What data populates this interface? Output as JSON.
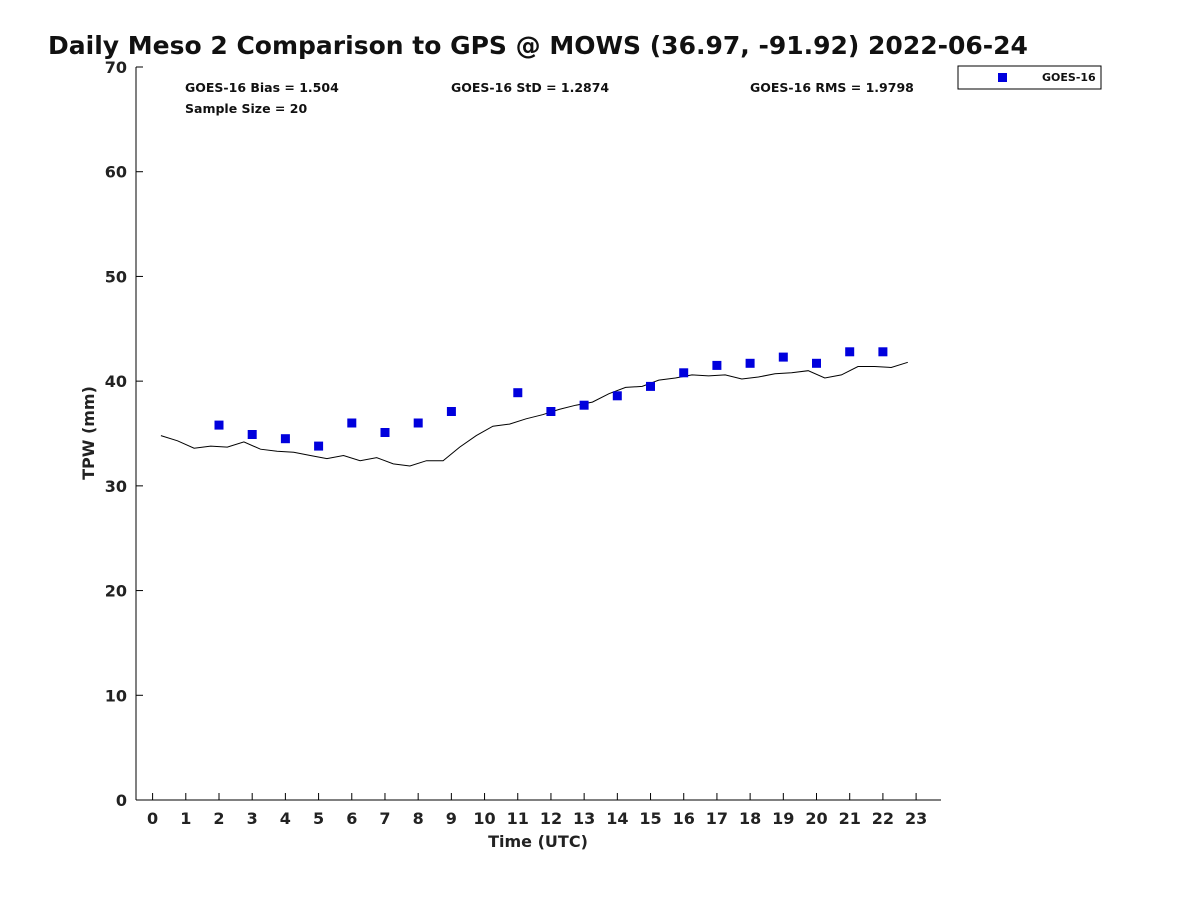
{
  "colors": {
    "marker": "#0000dd",
    "line": "#000000",
    "axis": "#000000"
  },
  "chart_data": {
    "type": "scatter",
    "title": "Daily Meso 2 Comparison to GPS @ MOWS (36.97, -91.92) 2022-06-24",
    "xlabel": "Time (UTC)",
    "ylabel": "TPW (mm)",
    "xlim": [
      -0.5,
      23.75
    ],
    "ylim": [
      0,
      70
    ],
    "xticks": [
      "0",
      "1",
      "2",
      "3",
      "4",
      "5",
      "6",
      "7",
      "8",
      "9",
      "10",
      "11",
      "12",
      "13",
      "14",
      "15",
      "16",
      "17",
      "18",
      "19",
      "20",
      "21",
      "22",
      "23"
    ],
    "yticks": [
      "0",
      "10",
      "20",
      "30",
      "40",
      "50",
      "60",
      "70"
    ],
    "grid": false,
    "legend_position": "top-right, outside plot",
    "stats": {
      "bias": "GOES-16 Bias = 1.504",
      "std": "GOES-16 StD = 1.2874",
      "rms": "GOES-16 RMS = 1.9798",
      "sample": "Sample Size = 20"
    },
    "series": [
      {
        "name": "GOES-16",
        "kind": "markers",
        "x": [
          2,
          3,
          4,
          5,
          6,
          7,
          8,
          9,
          11,
          12,
          13,
          14,
          15,
          16,
          17,
          18,
          19,
          20,
          21,
          22
        ],
        "y": [
          35.8,
          34.9,
          34.5,
          33.8,
          36.0,
          35.1,
          36.0,
          37.1,
          38.9,
          37.1,
          37.7,
          38.6,
          39.5,
          40.8,
          41.5,
          41.7,
          42.3,
          41.7,
          42.8,
          42.8
        ]
      },
      {
        "kind": "line",
        "x": [
          0.25,
          0.75,
          1.25,
          1.75,
          2.25,
          2.75,
          3.25,
          3.75,
          4.25,
          4.75,
          5.25,
          5.75,
          6.25,
          6.75,
          7.25,
          7.75,
          8.25,
          8.75,
          9.25,
          9.75,
          10.25,
          10.75,
          11.25,
          11.75,
          12.25,
          12.75,
          13.25,
          13.75,
          14.25,
          14.75,
          15.25,
          15.75,
          16.25,
          16.75,
          17.25,
          17.75,
          18.25,
          18.75,
          19.25,
          19.75,
          20.25,
          20.75,
          21.25,
          21.75,
          22.25,
          22.75
        ],
        "y": [
          34.8,
          34.3,
          33.6,
          33.8,
          33.7,
          34.2,
          33.5,
          33.3,
          33.2,
          32.9,
          32.6,
          32.9,
          32.4,
          32.7,
          32.1,
          31.9,
          32.4,
          32.4,
          33.7,
          34.8,
          35.7,
          35.9,
          36.4,
          36.8,
          37.3,
          37.7,
          38.0,
          38.8,
          39.4,
          39.5,
          40.1,
          40.3,
          40.6,
          40.5,
          40.6,
          40.2,
          40.4,
          40.7,
          40.8,
          41.0,
          40.3,
          40.6,
          41.4,
          41.4,
          41.3,
          41.8
        ]
      }
    ]
  }
}
